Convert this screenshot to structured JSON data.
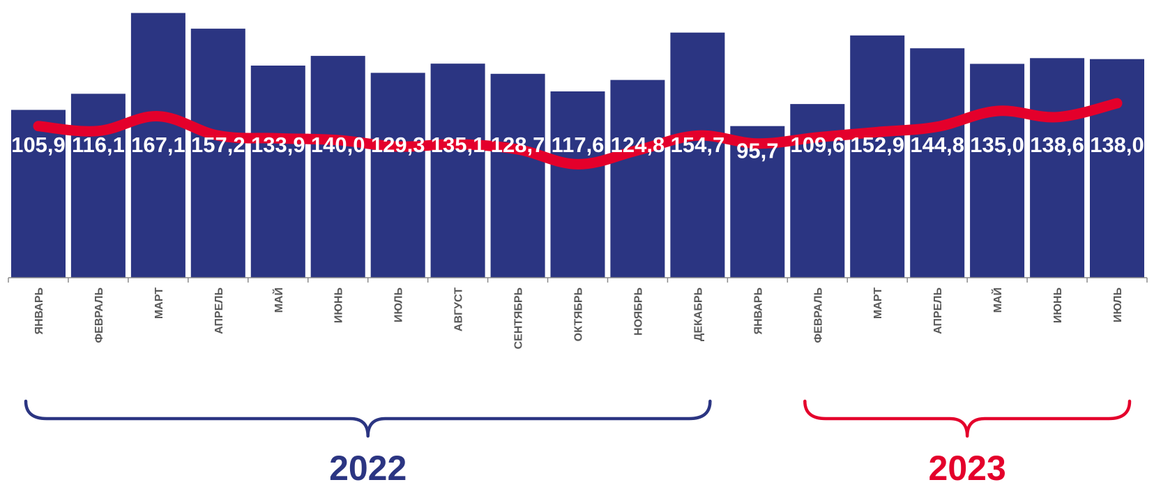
{
  "chart_data": {
    "type": "bar",
    "categories": [
      "ЯНВАРЬ",
      "ФЕВРАЛЬ",
      "МАРТ",
      "АПРЕЛЬ",
      "МАЙ",
      "ИЮНЬ",
      "ИЮЛЬ",
      "АВГУСТ",
      "СЕНТЯБРЬ",
      "ОКТЯБРЬ",
      "НОЯБРЬ",
      "ДЕКАБРЬ",
      "ЯНВАРЬ",
      "ФЕВРАЛЬ",
      "МАРТ",
      "АПРЕЛЬ",
      "МАЙ",
      "ИЮНЬ",
      "ИЮЛЬ"
    ],
    "series": [
      {
        "type": "bar",
        "values": [
          105.9,
          116.1,
          167.1,
          157.2,
          133.9,
          140.0,
          129.3,
          135.1,
          128.7,
          117.6,
          124.8,
          154.7,
          95.7,
          109.6,
          152.9,
          144.8,
          135.0,
          138.6,
          138.0
        ],
        "labels": [
          "105,9",
          "116,1",
          "167,1",
          "157,2",
          "133,9",
          "140,0",
          "129,3",
          "135,1",
          "128,7",
          "117,6",
          "124,8",
          "154,7",
          "95,7",
          "109,6",
          "152,9",
          "144,8",
          "135,0",
          "138,6",
          "138,0"
        ],
        "color": "#2b3582"
      },
      {
        "type": "line",
        "values": [
          95.7,
          92.6,
          101.9,
          89.7,
          88.0,
          86.8,
          82.8,
          84.2,
          81.0,
          71.6,
          80.4,
          89.7,
          84.7,
          88.6,
          91.9,
          95.3,
          105.2,
          101.4,
          110.1
        ],
        "color": "#e4002b"
      }
    ],
    "ylim": [
      0,
      170
    ],
    "groups": [
      {
        "label": "2022",
        "from": 0,
        "to": 11,
        "color": "#2b3582"
      },
      {
        "label": "2023",
        "from": 13,
        "to": 18,
        "color": "#e4002b"
      }
    ],
    "xlabel": "",
    "ylabel": "",
    "title": "",
    "legend": "none",
    "grid": false
  }
}
